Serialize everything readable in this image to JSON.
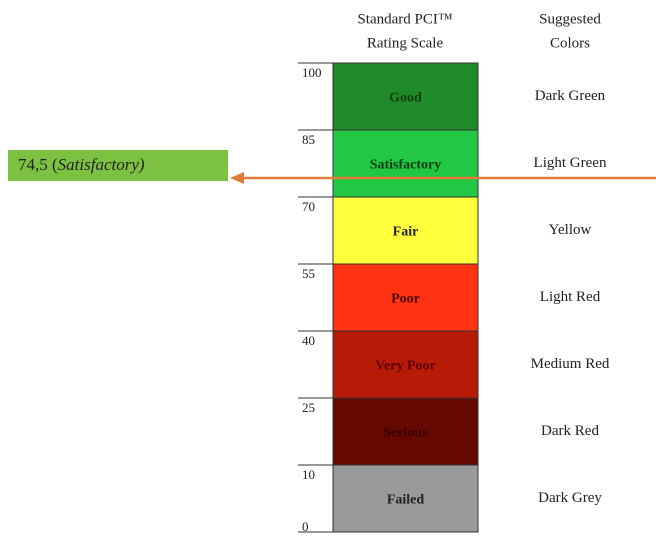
{
  "header": {
    "scale_title": [
      "Standard PCI™",
      "Rating Scale"
    ],
    "colors_title": [
      "Suggested",
      "Colors"
    ]
  },
  "levels": [
    100,
    85,
    70,
    55,
    40,
    25,
    10,
    0
  ],
  "bands": [
    {
      "label": "Good",
      "color_name": "Dark Green"
    },
    {
      "label": "Satisfactory",
      "color_name": "Light Green"
    },
    {
      "label": "Fair",
      "color_name": "Yellow"
    },
    {
      "label": "Poor",
      "color_name": "Light Red"
    },
    {
      "label": "Very Poor",
      "color_name": "Medium Red"
    },
    {
      "label": "Serious",
      "color_name": "Dark Red"
    },
    {
      "label": "Failed",
      "color_name": "Dark Grey"
    }
  ],
  "marker": {
    "value": "74,5 (",
    "category": "Satisfactory)"
  }
}
